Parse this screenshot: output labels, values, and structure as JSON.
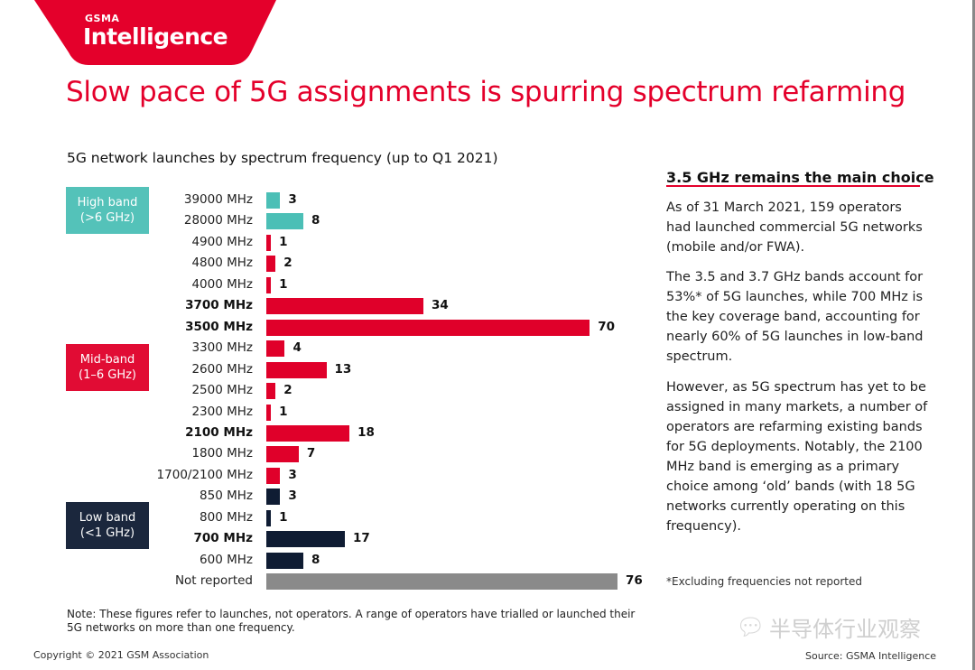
{
  "logo": {
    "line1": "GSMA",
    "line2": "Intelligence"
  },
  "title": "Slow pace of 5G assignments is spurring spectrum refarming",
  "colors": {
    "high": "#4bbfb6",
    "mid": "#e0002a",
    "low": "#0f1c33",
    "none": "#8a8a8a",
    "accent": "#e4002b"
  },
  "chart_data": {
    "type": "bar",
    "orientation": "horizontal",
    "title": "5G network launches by spectrum frequency (up to Q1 2021)",
    "groups": [
      {
        "label_line1": "High band",
        "label_line2": "(>6 GHz)",
        "color": "#4bbfb6"
      },
      {
        "label_line1": "Mid-band",
        "label_line2": "(1–6 GHz)",
        "color": "#e0002a"
      },
      {
        "label_line1": "Low band",
        "label_line2": "(<1 GHz)",
        "color": "#0f1c33"
      }
    ],
    "bars": [
      {
        "category": "39000 MHz",
        "value": 3,
        "group": "high",
        "bold": false
      },
      {
        "category": "28000 MHz",
        "value": 8,
        "group": "high",
        "bold": false
      },
      {
        "category": "4900 MHz",
        "value": 1,
        "group": "mid",
        "bold": false
      },
      {
        "category": "4800 MHz",
        "value": 2,
        "group": "mid",
        "bold": false
      },
      {
        "category": "4000 MHz",
        "value": 1,
        "group": "mid",
        "bold": false
      },
      {
        "category": "3700 MHz",
        "value": 34,
        "group": "mid",
        "bold": true
      },
      {
        "category": "3500 MHz",
        "value": 70,
        "group": "mid",
        "bold": true
      },
      {
        "category": "3300 MHz",
        "value": 4,
        "group": "mid",
        "bold": false
      },
      {
        "category": "2600 MHz",
        "value": 13,
        "group": "mid",
        "bold": false
      },
      {
        "category": "2500 MHz",
        "value": 2,
        "group": "mid",
        "bold": false
      },
      {
        "category": "2300 MHz",
        "value": 1,
        "group": "mid",
        "bold": false
      },
      {
        "category": "2100 MHz",
        "value": 18,
        "group": "mid",
        "bold": true
      },
      {
        "category": "1800 MHz",
        "value": 7,
        "group": "mid",
        "bold": false
      },
      {
        "category": "1700/2100 MHz",
        "value": 3,
        "group": "mid",
        "bold": false
      },
      {
        "category": "850 MHz",
        "value": 3,
        "group": "low",
        "bold": false
      },
      {
        "category": "800 MHz",
        "value": 1,
        "group": "low",
        "bold": false
      },
      {
        "category": "700 MHz",
        "value": 17,
        "group": "low",
        "bold": true
      },
      {
        "category": "600 MHz",
        "value": 8,
        "group": "low",
        "bold": false
      },
      {
        "category": "Not reported",
        "value": 76,
        "group": "none",
        "bold": false
      }
    ],
    "xlim": [
      0,
      76
    ],
    "grid": false,
    "data_labels": true
  },
  "sidebar": {
    "heading": "3.5 GHz remains the main choice",
    "paragraphs": [
      "As of 31 March 2021, 159 operators had launched commercial 5G networks (mobile and/or FWA).",
      "The 3.5 and 3.7 GHz bands account for 53%* of 5G launches, while 700 MHz is the key coverage band, accounting for nearly 60% of 5G launches in low-band spectrum.",
      "However, as 5G spectrum has yet to be assigned in many markets, a number of operators are refarming existing bands for 5G deployments. Notably, the 2100 MHz band is emerging as a primary choice among ‘old’ bands (with 18 5G networks currently operating on this frequency)."
    ],
    "footnote": "*Excluding frequencies not reported"
  },
  "note": "Note: These figures refer to launches, not operators. A range of operators have trialled or launched their 5G networks on more than one frequency.",
  "copyright": "Copyright © 2021 GSM Association",
  "source": "Source: GSMA Intelligence",
  "watermark": "半导体行业观察"
}
